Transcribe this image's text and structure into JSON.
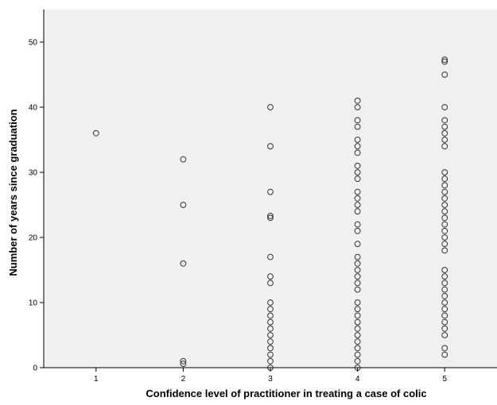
{
  "chart_data": {
    "type": "scatter",
    "title": "",
    "xlabel": "Confidence level of practitioner in treating a case of colic",
    "ylabel": "Number of years since graduation",
    "xlim": [
      0.4,
      5.6
    ],
    "ylim": [
      0,
      55
    ],
    "x_ticks": [
      1,
      2,
      3,
      4,
      5
    ],
    "x_tick_labels": [
      "1",
      "2",
      "3",
      "4",
      "5"
    ],
    "y_ticks": [
      0,
      10,
      20,
      30,
      40,
      50
    ],
    "y_tick_labels": [
      "0",
      "10",
      "20",
      "30",
      "40",
      "50"
    ],
    "grid": false,
    "legend": "none",
    "colors": {
      "plot_background": "#f0f0f0",
      "marker_stroke": "#333333",
      "axis": "#000000"
    },
    "series": [
      {
        "points": [
          [
            1,
            36
          ],
          [
            2,
            32
          ],
          [
            2,
            25
          ],
          [
            2,
            16
          ],
          [
            2,
            1
          ],
          [
            2,
            0.6
          ],
          [
            3,
            40
          ],
          [
            3,
            34
          ],
          [
            3,
            27
          ],
          [
            3,
            23
          ],
          [
            3,
            23.3
          ],
          [
            3,
            17
          ],
          [
            3,
            14
          ],
          [
            3,
            13
          ],
          [
            3,
            10
          ],
          [
            3,
            9
          ],
          [
            3,
            8
          ],
          [
            3,
            7
          ],
          [
            3,
            6
          ],
          [
            3,
            5
          ],
          [
            3,
            4
          ],
          [
            3,
            3
          ],
          [
            3,
            2
          ],
          [
            3,
            1
          ],
          [
            3,
            0
          ],
          [
            4,
            41
          ],
          [
            4,
            40
          ],
          [
            4,
            38
          ],
          [
            4,
            37
          ],
          [
            4,
            35
          ],
          [
            4,
            34
          ],
          [
            4,
            33
          ],
          [
            4,
            31
          ],
          [
            4,
            30
          ],
          [
            4,
            29
          ],
          [
            4,
            27
          ],
          [
            4,
            26
          ],
          [
            4,
            25
          ],
          [
            4,
            24
          ],
          [
            4,
            22
          ],
          [
            4,
            21
          ],
          [
            4,
            19
          ],
          [
            4,
            17
          ],
          [
            4,
            16
          ],
          [
            4,
            15
          ],
          [
            4,
            14
          ],
          [
            4,
            13
          ],
          [
            4,
            12
          ],
          [
            4,
            10
          ],
          [
            4,
            9
          ],
          [
            4,
            8
          ],
          [
            4,
            7
          ],
          [
            4,
            6
          ],
          [
            4,
            5
          ],
          [
            4,
            4
          ],
          [
            4,
            3
          ],
          [
            4,
            2
          ],
          [
            4,
            1
          ],
          [
            4,
            0
          ],
          [
            5,
            47
          ],
          [
            5,
            47.3
          ],
          [
            5,
            45
          ],
          [
            5,
            40
          ],
          [
            5,
            38
          ],
          [
            5,
            37
          ],
          [
            5,
            36
          ],
          [
            5,
            35
          ],
          [
            5,
            34
          ],
          [
            5,
            30
          ],
          [
            5,
            29
          ],
          [
            5,
            28
          ],
          [
            5,
            27
          ],
          [
            5,
            26
          ],
          [
            5,
            25
          ],
          [
            5,
            24
          ],
          [
            5,
            23
          ],
          [
            5,
            22
          ],
          [
            5,
            21
          ],
          [
            5,
            20
          ],
          [
            5,
            19
          ],
          [
            5,
            18
          ],
          [
            5,
            15
          ],
          [
            5,
            14
          ],
          [
            5,
            13
          ],
          [
            5,
            12
          ],
          [
            5,
            11
          ],
          [
            5,
            10
          ],
          [
            5,
            9
          ],
          [
            5,
            8
          ],
          [
            5,
            7
          ],
          [
            5,
            6
          ],
          [
            5,
            5
          ],
          [
            5,
            3
          ],
          [
            5,
            2
          ]
        ]
      }
    ]
  }
}
